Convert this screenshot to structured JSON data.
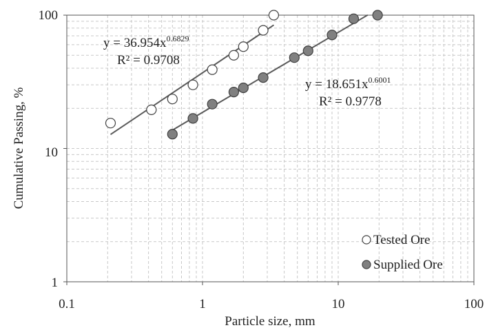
{
  "chart_data": {
    "type": "scatter",
    "xlabel": "Particle size, mm",
    "ylabel": "Cumulative Passing, %",
    "xscale": "log",
    "yscale": "log",
    "xlim": [
      0.1,
      100
    ],
    "ylim": [
      1,
      100
    ],
    "x_ticks": [
      "0.1",
      "1",
      "10",
      "100"
    ],
    "y_ticks": [
      "1",
      "10",
      "100"
    ],
    "grid": "major and minor, dashed",
    "legend_position": "bottom-right",
    "series": [
      {
        "name": "Tested Ore",
        "marker": "open-circle",
        "x": [
          0.21,
          0.42,
          0.6,
          0.85,
          1.18,
          1.7,
          2.0,
          2.8,
          3.35
        ],
        "y": [
          15.5,
          19.5,
          23.5,
          30,
          39,
          50,
          58,
          77,
          100
        ]
      },
      {
        "name": "Supplied Ore",
        "marker": "filled-circle",
        "x": [
          0.6,
          0.85,
          1.18,
          1.7,
          2.0,
          2.8,
          4.75,
          6.0,
          9.0,
          13.0,
          19.5
        ],
        "y": [
          12.8,
          16.8,
          21.5,
          26.5,
          28.5,
          34,
          48,
          54,
          71,
          94,
          100
        ]
      }
    ],
    "trendlines": [
      {
        "coef": 36.954,
        "exp": 0.6829,
        "x_range": [
          0.21,
          3.35
        ],
        "eq_prefix": "y = 36.954x",
        "eq_exp": "0.6829",
        "r2_text": "R² = 0.9708"
      },
      {
        "coef": 18.651,
        "exp": 0.6001,
        "x_range": [
          0.6,
          16.5
        ],
        "eq_prefix": "y = 18.651x",
        "eq_exp": "0.6001",
        "r2_text": "R² = 0.9778"
      }
    ]
  },
  "colors": {
    "axis": "#555555",
    "grid": "#c8c8c8",
    "trend_line": "#595959",
    "tested_fill": "#ffffff",
    "supplied_fill": "#808080",
    "marker_stroke": "#404040"
  }
}
